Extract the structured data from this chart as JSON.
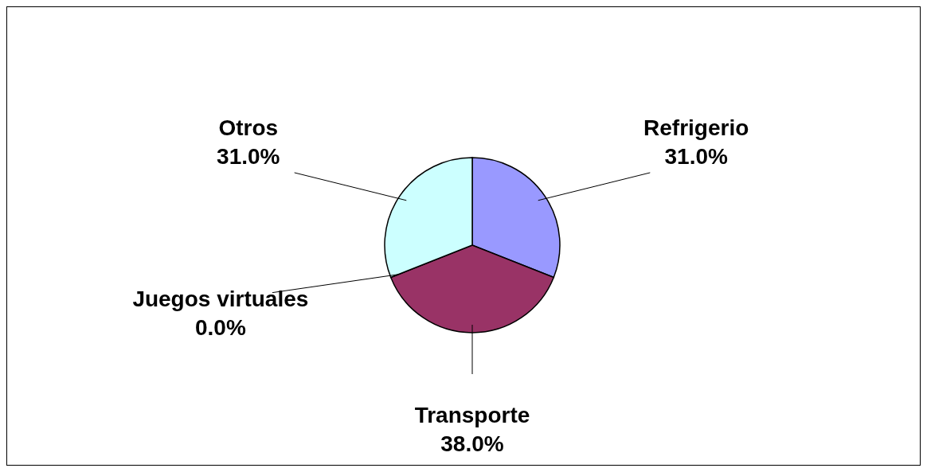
{
  "chart_data": {
    "type": "pie",
    "categories": [
      "Refrigerio",
      "Transporte",
      "Juegos virtuales",
      "Otros"
    ],
    "values": [
      31,
      38,
      0,
      31
    ],
    "colors": [
      "#9999ff",
      "#993366",
      null,
      "#ccffff"
    ],
    "value_labels": [
      "31.0%",
      "38.0%",
      "0.0%",
      "31.0%"
    ]
  }
}
